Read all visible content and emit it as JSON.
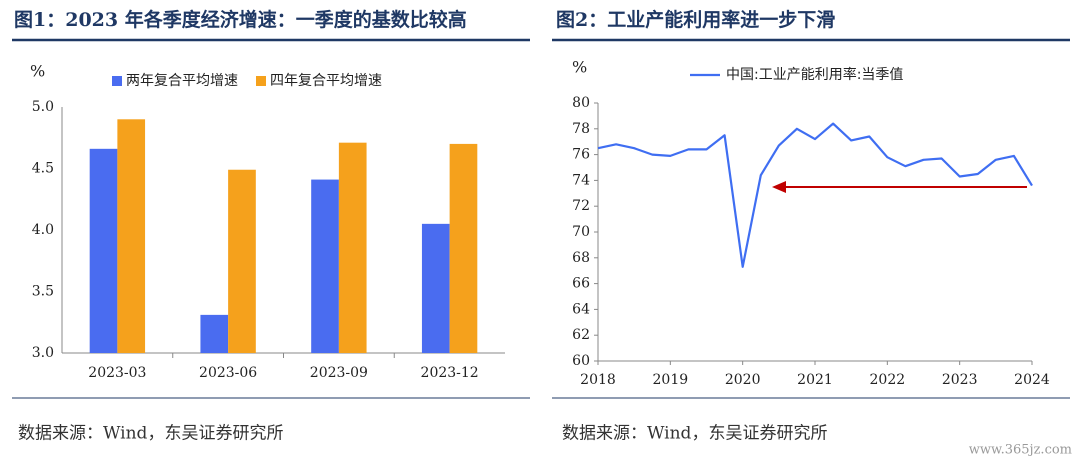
{
  "chart_data": [
    {
      "type": "bar",
      "title": "图1：2023 年各季度经济增速：一季度的基数比较高",
      "y_label": "%",
      "categories": [
        "2023-03",
        "2023-06",
        "2023-09",
        "2023-12"
      ],
      "series": [
        {
          "name": "两年复合平均增速",
          "color": "#4a6cf0",
          "values": [
            4.66,
            3.31,
            4.41,
            4.05
          ]
        },
        {
          "name": "四年复合平均增速",
          "color": "#f5a11c",
          "values": [
            4.9,
            4.49,
            4.71,
            4.7
          ]
        }
      ],
      "ylim": [
        3,
        5
      ],
      "yticks": [
        {
          "value": 3,
          "label": "3.0"
        },
        3.5,
        {
          "value": 4,
          "label": "4.0"
        },
        4.5,
        {
          "value": 5,
          "label": "5.0"
        }
      ],
      "source": "数据来源：Wind，东吴证券研究所"
    },
    {
      "type": "line",
      "title": "图2：工业产能利用率进一步下滑",
      "y_label": "%",
      "x": [
        2018,
        2018.25,
        2018.5,
        2018.75,
        2019,
        2019.25,
        2019.5,
        2019.75,
        2020,
        2020.25,
        2020.5,
        2020.75,
        2021,
        2021.25,
        2021.5,
        2021.75,
        2022,
        2022.25,
        2022.5,
        2022.75,
        2023,
        2023.25,
        2023.5,
        2023.75,
        2024
      ],
      "series": [
        {
          "name": "中国:工业产能利用率:当季值",
          "color": "#3f6ef2",
          "values": [
            76.5,
            76.8,
            76.5,
            76.0,
            75.9,
            76.4,
            76.4,
            77.5,
            67.3,
            74.4,
            76.7,
            78.0,
            77.2,
            78.4,
            77.1,
            77.4,
            75.8,
            75.1,
            75.6,
            75.7,
            74.3,
            74.5,
            75.6,
            75.9,
            73.6
          ]
        }
      ],
      "xlim": [
        2018,
        2024
      ],
      "xticks": [
        2018,
        2019,
        2020,
        2021,
        2022,
        2023,
        2024
      ],
      "ylim": [
        60,
        80
      ],
      "yticks": [
        60,
        62,
        64,
        66,
        68,
        70,
        72,
        74,
        76,
        78,
        80
      ],
      "source": "数据来源：Wind，东吴证券研究所"
    }
  ],
  "watermark": "www.365jz.com"
}
